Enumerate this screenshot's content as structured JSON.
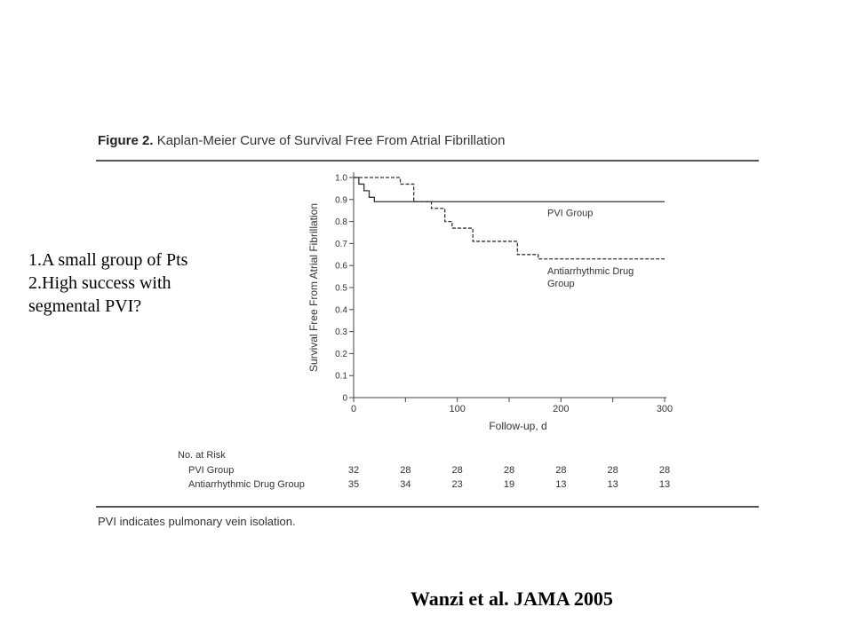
{
  "figure": {
    "label": "Figure 2.",
    "title": "Kaplan-Meier Curve of Survival Free From Atrial Fibrillation",
    "footnote": "PVI indicates pulmonary vein isolation."
  },
  "notes": [
    "1.A small group of Pts",
    "2.High success with",
    "segmental PVI?"
  ],
  "citation": "Wanzi et al. JAMA 2005",
  "chart_data": {
    "type": "line",
    "step": true,
    "xlabel": "Follow-up, d",
    "ylabel": "Survival Free From Atrial Fibrillation",
    "xlim": [
      0,
      300
    ],
    "ylim": [
      0,
      1.0
    ],
    "x_ticks": [
      0,
      100,
      200,
      300
    ],
    "x_minor_ticks": [
      0,
      50,
      100,
      150,
      200,
      250,
      300
    ],
    "y_ticks": [
      "0",
      "0.1",
      "0.2",
      "0.3",
      "0.4",
      "0.5",
      "0.6",
      "0.7",
      "0.8",
      "0.9",
      "1.0"
    ],
    "series": [
      {
        "name": "PVI Group",
        "dash": false,
        "label_lines": [
          "PVI Group"
        ],
        "points": [
          [
            0,
            1.0
          ],
          [
            5,
            0.97
          ],
          [
            10,
            0.94
          ],
          [
            15,
            0.91
          ],
          [
            20,
            0.89
          ],
          [
            300,
            0.89
          ]
        ]
      },
      {
        "name": "Antiarrhythmic Drug Group",
        "dash": true,
        "label_lines": [
          "Antiarrhythmic Drug",
          "Group"
        ],
        "points": [
          [
            0,
            1.0
          ],
          [
            45,
            0.97
          ],
          [
            58,
            0.89
          ],
          [
            75,
            0.86
          ],
          [
            88,
            0.8
          ],
          [
            95,
            0.77
          ],
          [
            115,
            0.71
          ],
          [
            158,
            0.65
          ],
          [
            178,
            0.63
          ],
          [
            300,
            0.63
          ]
        ]
      }
    ],
    "risk_table": {
      "title": "No. at Risk",
      "columns_x": [
        0,
        50,
        100,
        150,
        200,
        250,
        300
      ],
      "rows": [
        {
          "label": "PVI Group",
          "values": [
            "32",
            "28",
            "28",
            "28",
            "28",
            "28",
            "28"
          ]
        },
        {
          "label": "Antiarrhythmic Drug Group",
          "values": [
            "35",
            "34",
            "23",
            "19",
            "13",
            "13",
            "13"
          ]
        }
      ]
    }
  }
}
